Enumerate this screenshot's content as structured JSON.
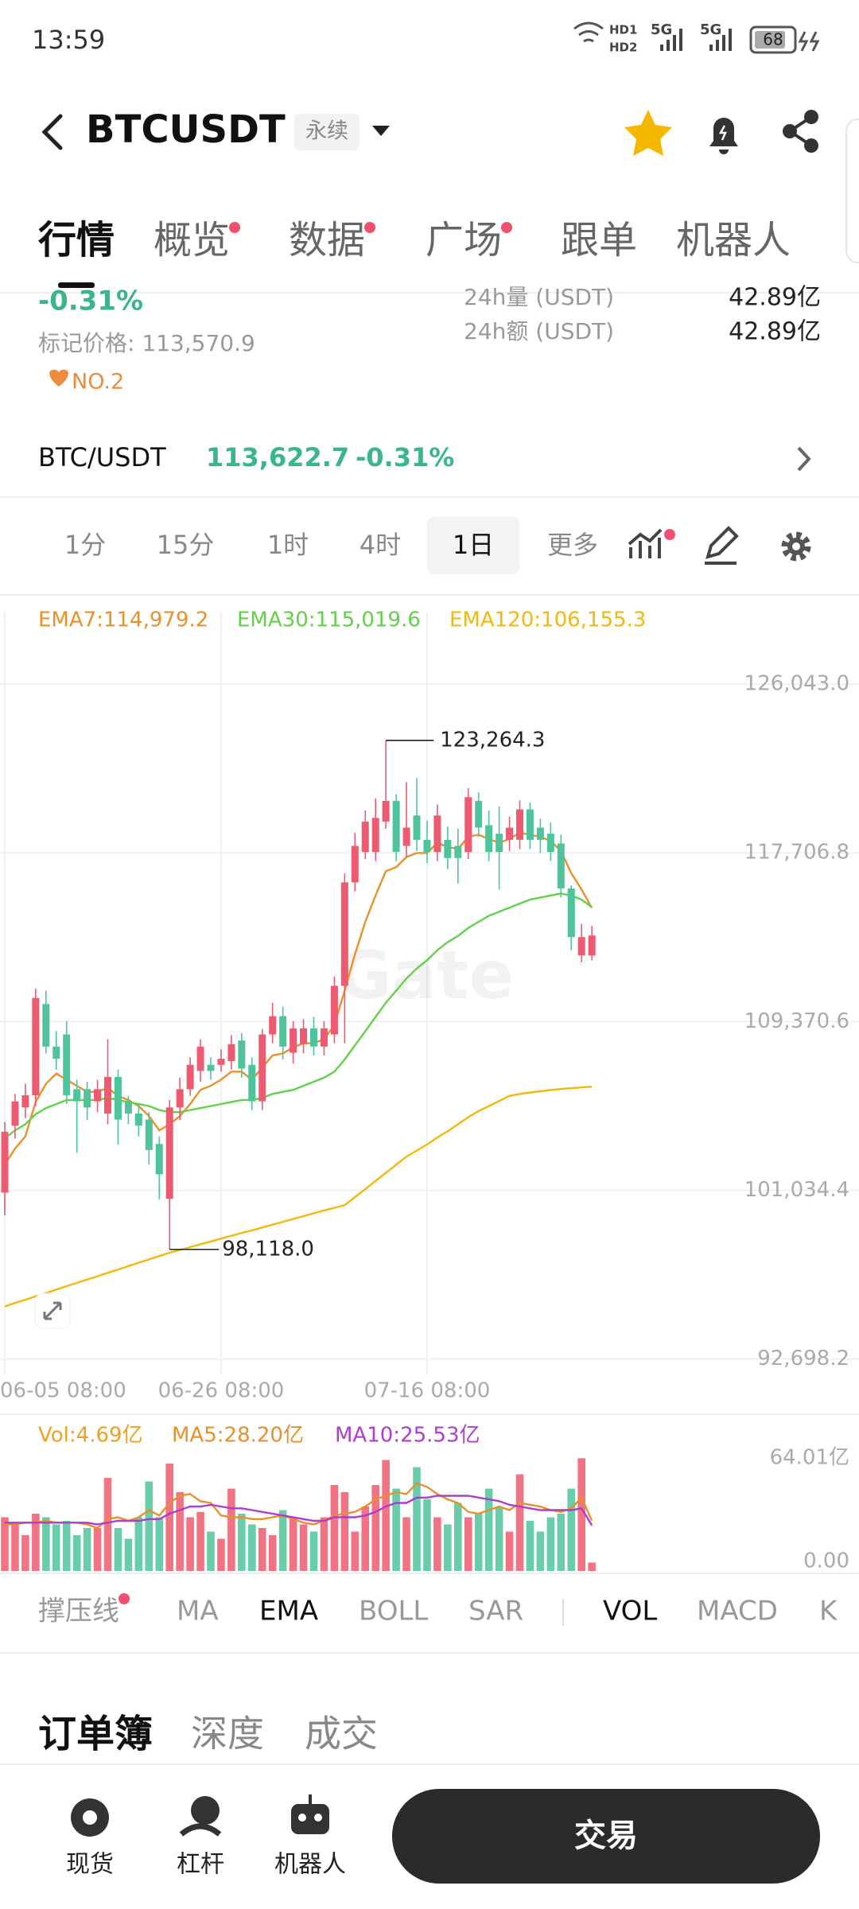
{
  "status_bar": {
    "time": "13:59",
    "network": [
      "HD1",
      "HD2",
      "5G",
      "5G"
    ],
    "battery": "68"
  },
  "header": {
    "symbol": "BTCUSDT",
    "contract": "永续"
  },
  "tabs": {
    "selected": 0,
    "items": [
      {
        "label": "行情",
        "dot": false
      },
      {
        "label": "概览",
        "dot": true
      },
      {
        "label": "数据",
        "dot": true
      },
      {
        "label": "广场",
        "dot": true
      },
      {
        "label": "跟单",
        "dot": false
      },
      {
        "label": "机器人",
        "dot": false
      }
    ]
  },
  "ticker": {
    "change": "-0.31%",
    "mark_price": "标记价格: 113,570.9",
    "rank": "NO.2",
    "stats": [
      {
        "label": "24h量 (USDT)",
        "value": "42.89亿"
      },
      {
        "label": "24h额 (USDT)",
        "value": "42.89亿"
      }
    ]
  },
  "pair_row": {
    "pair": "BTC/USDT",
    "price": "113,622.7",
    "change": "-0.31%"
  },
  "intervals": {
    "selected": 4,
    "items": [
      "1分",
      "15分",
      "1时",
      "4时",
      "1日",
      "更多"
    ]
  },
  "chart_data": [
    {
      "type": "candlestick",
      "categories": [
        "06-05 08:00",
        null,
        null,
        null,
        null,
        null,
        null,
        null,
        null,
        null,
        null,
        null,
        null,
        null,
        null,
        null,
        null,
        null,
        null,
        null,
        null,
        "06-26 08:00",
        null,
        null,
        null,
        null,
        null,
        null,
        null,
        null,
        null,
        null,
        null,
        null,
        null,
        null,
        null,
        null,
        null,
        null,
        null,
        "07-16 08:00",
        null,
        null,
        null,
        null,
        null,
        null,
        null,
        null,
        null,
        null,
        null,
        null,
        null,
        null,
        null,
        null
      ],
      "open": [
        100925,
        104229,
        105130,
        105732,
        110240,
        108136,
        108737,
        106032,
        106032,
        105431,
        104830,
        106634,
        105431,
        104830,
        104530,
        103328,
        100624,
        105130,
        106032,
        106934,
        107235,
        107235,
        107415,
        108437,
        107235,
        105431,
        108737,
        109639,
        107836,
        108257,
        109038,
        108136,
        108737,
        111141,
        116248,
        117750,
        117750,
        119253,
        120274,
        118051,
        119553,
        118351,
        117750,
        118351,
        118051,
        117750,
        120274,
        119073,
        118652,
        118351,
        118351,
        119854,
        118952,
        118652,
        118171,
        115948,
        112643,
        112643
      ],
      "high": [
        104400,
        105800,
        106300,
        111000,
        110900,
        108900,
        109400,
        106500,
        106400,
        106500,
        108500,
        107000,
        105700,
        105200,
        104900,
        103700,
        105500,
        106600,
        107600,
        108500,
        107600,
        108000,
        108700,
        108800,
        107600,
        109000,
        110300,
        110100,
        109400,
        109500,
        109600,
        109400,
        111600,
        116700,
        118700,
        119800,
        120400,
        123264.3,
        120600,
        121200,
        121400,
        119300,
        120100,
        119000,
        118900,
        120900,
        120700,
        119800,
        120000,
        119500,
        120300,
        120200,
        119400,
        119200,
        118600,
        116100,
        114200,
        114100
      ],
      "low": [
        99800,
        103600,
        104600,
        105200,
        107800,
        107000,
        105300,
        102900,
        104500,
        104900,
        104300,
        103300,
        104300,
        103700,
        102300,
        100600,
        98118,
        104500,
        105700,
        106400,
        106500,
        106900,
        107000,
        106600,
        105000,
        105000,
        108300,
        107500,
        107300,
        107800,
        107700,
        107700,
        108300,
        108300,
        115800,
        117400,
        117300,
        118900,
        117300,
        117500,
        117800,
        117200,
        117300,
        116900,
        116200,
        117400,
        118500,
        117300,
        115900,
        117800,
        117900,
        117900,
        117700,
        117300,
        115500,
        112900,
        112300,
        112400
      ],
      "close": [
        103929,
        105431,
        105732,
        110540,
        108136,
        107535,
        105732,
        105431,
        105130,
        106032,
        106634,
        104530,
        104830,
        104229,
        103028,
        101826,
        105130,
        106032,
        107235,
        108136,
        106934,
        107535,
        108257,
        107054,
        105431,
        108737,
        109639,
        108136,
        109038,
        109038,
        108136,
        109038,
        111141,
        116248,
        118051,
        119253,
        119433,
        120274,
        117750,
        118952,
        118351,
        117750,
        119553,
        117450,
        117450,
        120455,
        118952,
        117750,
        117750,
        118952,
        119854,
        118351,
        118351,
        117750,
        115948,
        113544,
        113544,
        113622.7
      ],
      "up_color": "#ee5a6f",
      "down_color": "#4fc49a",
      "series": [
        {
          "name": "EMA7:114,979.2",
          "color": "#e8912b",
          "values": [
            102300,
            103100,
            103700,
            105400,
            106300,
            106800,
            106500,
            106200,
            105900,
            105900,
            106100,
            105700,
            105500,
            105200,
            104700,
            104000,
            104300,
            104700,
            105300,
            106000,
            106200,
            106500,
            106900,
            106900,
            106500,
            107100,
            107700,
            107800,
            108100,
            108300,
            108300,
            108500,
            109200,
            110900,
            112700,
            114300,
            115600,
            116800,
            117000,
            117500,
            117700,
            117700,
            118200,
            118000,
            117900,
            118500,
            118600,
            118400,
            118200,
            118400,
            118700,
            118600,
            118500,
            118300,
            117800,
            116700,
            115900,
            114979.2
          ]
        },
        {
          "name": "EMA30:115,019.6",
          "color": "#62d14a",
          "values": [
            103600,
            104000,
            104300,
            104800,
            105100,
            105300,
            105500,
            105500,
            105500,
            105500,
            105600,
            105500,
            105400,
            105300,
            105200,
            105000,
            104900,
            104900,
            105000,
            105100,
            105200,
            105300,
            105400,
            105500,
            105500,
            105600,
            105800,
            105900,
            106000,
            106200,
            106400,
            106600,
            106900,
            107500,
            108200,
            108900,
            109600,
            110300,
            110900,
            111500,
            112000,
            112400,
            112900,
            113300,
            113600,
            114000,
            114300,
            114600,
            114800,
            115000,
            115200,
            115400,
            115500,
            115600,
            115700,
            115600,
            115400,
            115019.6
          ]
        },
        {
          "name": "EMA120:106,155.3",
          "color": "#f0b90b",
          "values": [
            95300,
            95470,
            95630,
            95800,
            95960,
            96130,
            96300,
            96460,
            96630,
            96790,
            96960,
            97120,
            97290,
            97460,
            97620,
            97790,
            97950,
            98090,
            98230,
            98370,
            98510,
            98650,
            98790,
            98930,
            99060,
            99200,
            99340,
            99480,
            99620,
            99760,
            99900,
            100040,
            100170,
            100300,
            100700,
            101100,
            101500,
            101900,
            102300,
            102700,
            103000,
            103300,
            103650,
            103950,
            104300,
            104650,
            104950,
            105200,
            105450,
            105700,
            105800,
            105870,
            105930,
            105990,
            106040,
            106080,
            106120,
            106155.3
          ]
        }
      ],
      "ylim": [
        91900,
        128600
      ],
      "yticks": [
        {
          "value": 126043,
          "label": "126,043.0"
        },
        {
          "value": 117706.8,
          "label": "117,706.8"
        },
        {
          "value": 109370.6,
          "label": "109,370.6"
        },
        {
          "value": 101034.4,
          "label": "101,034.4"
        },
        {
          "value": 92698.2,
          "label": "92,698.2"
        }
      ],
      "grid": true,
      "max_label": "123,264.3",
      "min_label": "98,118.0",
      "watermark": "Gate"
    },
    {
      "type": "bar",
      "name": "Vol:4.69亿",
      "color": "#f0a020",
      "values": [
        30,
        26,
        20,
        32,
        30,
        26,
        28,
        20,
        24,
        24,
        52,
        24,
        18,
        30,
        50,
        30,
        60,
        44,
        30,
        33,
        22,
        18,
        46,
        32,
        26,
        24,
        20,
        34,
        30,
        26,
        22,
        30,
        48,
        44,
        22,
        36,
        48,
        62,
        46,
        30,
        58,
        40,
        30,
        26,
        38,
        30,
        32,
        46,
        36,
        22,
        54,
        28,
        22,
        30,
        32,
        46,
        63,
        4.69
      ],
      "series": [
        {
          "name": "MA5:28.20亿",
          "color": "#e8912b",
          "values": [
            26,
            26,
            27,
            27,
            28,
            27,
            27,
            27,
            26,
            24,
            29,
            30,
            28,
            30,
            34,
            31,
            38,
            42,
            43,
            39,
            38,
            31,
            30,
            30,
            29,
            29,
            30,
            31,
            29,
            27,
            26,
            28,
            31,
            32,
            33,
            36,
            40,
            42,
            44,
            43,
            49,
            47,
            43,
            40,
            38,
            33,
            32,
            34,
            36,
            34,
            38,
            37,
            36,
            34,
            33,
            35,
            41,
            28.2
          ]
        },
        {
          "name": "MA10:25.53亿",
          "color": "#b03bd0",
          "values": [
            27,
            27,
            27,
            27,
            27,
            27,
            27,
            27,
            27,
            26,
            27,
            28,
            28,
            28,
            29,
            29,
            32,
            34,
            36,
            36,
            37,
            36,
            35,
            35,
            34,
            33,
            32,
            31,
            30,
            29,
            28,
            28,
            30,
            30,
            30,
            31,
            33,
            36,
            38,
            38,
            41,
            41,
            42,
            42,
            42,
            42,
            41,
            40,
            39,
            37,
            36,
            35,
            34,
            34,
            34,
            34,
            35,
            25.53
          ]
        }
      ],
      "ylim": [
        0,
        64.01
      ],
      "yticks": [
        {
          "value": 64.01,
          "label": "64.01亿"
        },
        {
          "value": 0,
          "label": "0.00"
        }
      ]
    }
  ],
  "indicators": [
    {
      "label": "撑压线",
      "active": false,
      "dot": true
    },
    {
      "label": "MA",
      "active": false,
      "dot": false
    },
    {
      "label": "EMA",
      "active": true,
      "dot": false
    },
    {
      "label": "BOLL",
      "active": false,
      "dot": false
    },
    {
      "label": "SAR",
      "active": false,
      "dot": false
    },
    {
      "label": "VOL",
      "active": true,
      "dot": false
    },
    {
      "label": "MACD",
      "active": false,
      "dot": false
    },
    {
      "label": "K",
      "active": false,
      "dot": false
    }
  ],
  "book_tabs": {
    "selected": 0,
    "items": [
      "订单簿",
      "深度",
      "成交"
    ]
  },
  "bottom_nav": {
    "items": [
      "现货",
      "杠杆",
      "机器人"
    ],
    "action": "交易"
  }
}
